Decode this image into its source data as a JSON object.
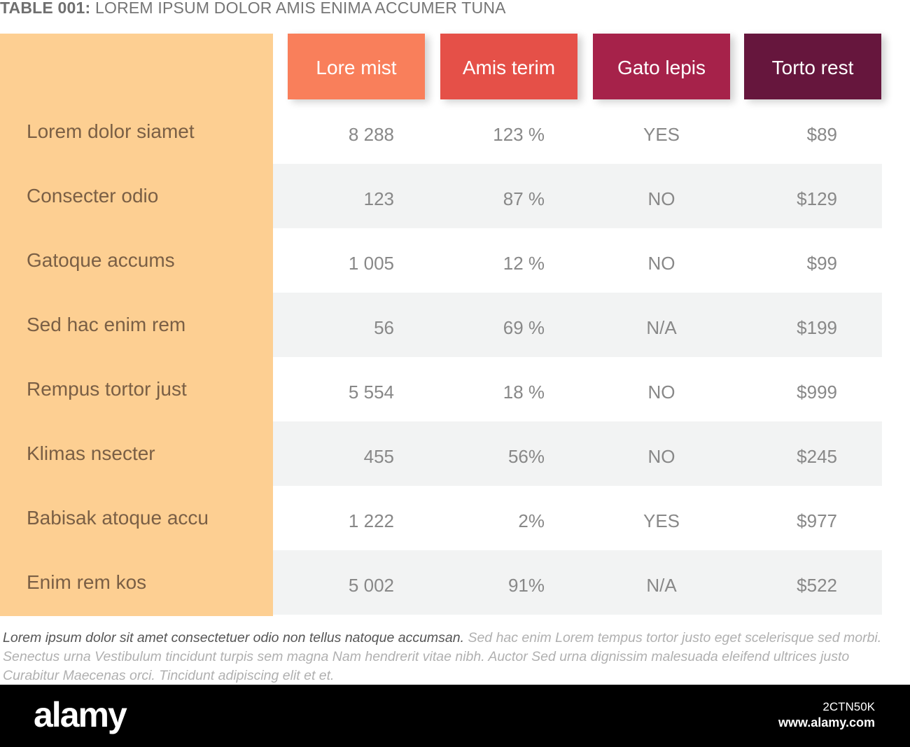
{
  "title": {
    "prefix": "TABLE 001:",
    "text": "LOREM IPSUM DOLOR AMIS ENIMA ACCUMER TUNA"
  },
  "colors": {
    "label_column": "#fdcf92",
    "header_1": "#f97f5b",
    "header_2": "#e55048",
    "header_3": "#a6224a",
    "header_4": "#66163d",
    "alt_row": "#f2f3f3"
  },
  "headers": [
    "Lore mist",
    "Amis terim",
    "Gato lepis",
    "Torto rest"
  ],
  "rows": [
    {
      "label": "Lorem dolor siamet",
      "values": [
        "8 288",
        "123 %",
        "YES",
        "$89"
      ]
    },
    {
      "label": "Consecter odio",
      "values": [
        "123",
        "87 %",
        "NO",
        "$129"
      ]
    },
    {
      "label": "Gatoque accums",
      "values": [
        "1 005",
        "12 %",
        "NO",
        "$99"
      ]
    },
    {
      "label": "Sed hac enim rem",
      "values": [
        "56",
        "69 %",
        "N/A",
        "$199"
      ]
    },
    {
      "label": "Rempus tortor just",
      "values": [
        "5 554",
        "18 %",
        "NO",
        "$999"
      ]
    },
    {
      "label": "Klimas nsecter",
      "values": [
        "455",
        "56%",
        "NO",
        "$245"
      ]
    },
    {
      "label": "Babisak atoque accu",
      "values": [
        "1 222",
        "2%",
        "YES",
        "$977"
      ]
    },
    {
      "label": "Enim rem kos",
      "values": [
        "5 002",
        "91%",
        "N/A",
        "$522"
      ]
    }
  ],
  "footnote": {
    "lead": "Lorem ipsum dolor sit amet consectetuer odio non tellus natoque accumsan.",
    "rest": "Sed hac enim Lorem tempus tortor justo eget scelerisque sed morbi. Senectus urna Vestibulum tincidunt turpis sem magna Nam hendrerit vitae nibh. Auctor Sed urna dignissim malesuada eleifend ultrices justo Curabitur Maecenas orci. Tincidunt adipiscing elit et et."
  },
  "watermark": {
    "logo": "alamy",
    "image_id": "2CTN50K",
    "url": "www.alamy.com"
  }
}
